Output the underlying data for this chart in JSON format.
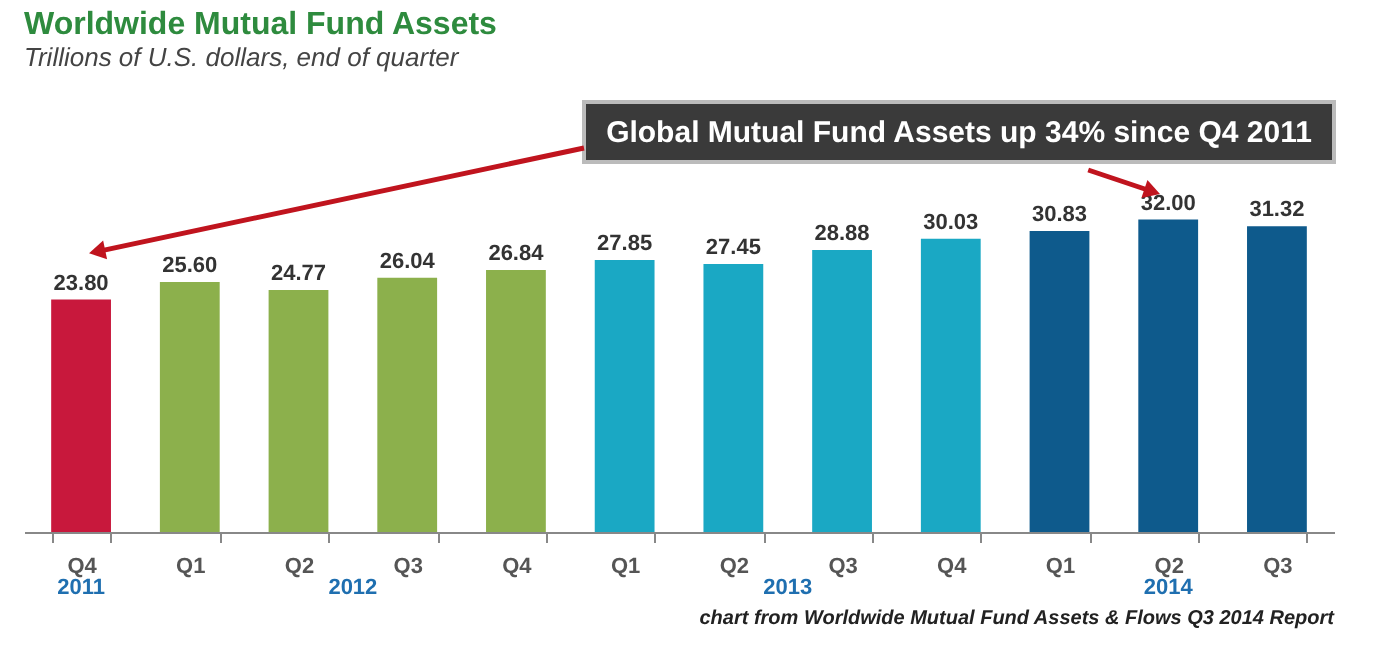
{
  "chart_data": {
    "type": "bar",
    "title": "Worldwide Mutual Fund Assets",
    "subtitle": "Trillions of U.S. dollars, end of quarter",
    "categories": [
      "Q4",
      "Q1",
      "Q2",
      "Q3",
      "Q4",
      "Q1",
      "Q2",
      "Q3",
      "Q4",
      "Q1",
      "Q2",
      "Q3"
    ],
    "values": [
      23.8,
      25.6,
      24.77,
      26.04,
      26.84,
      27.85,
      27.45,
      28.88,
      30.03,
      30.83,
      32.0,
      31.32
    ],
    "value_labels": [
      "23.80",
      "25.60",
      "24.77",
      "26.04",
      "26.84",
      "27.85",
      "27.45",
      "28.88",
      "30.03",
      "30.83",
      "32.00",
      "31.32"
    ],
    "colors": [
      "#c8183c",
      "#8cb04c",
      "#8cb04c",
      "#8cb04c",
      "#8cb04c",
      "#1aa8c4",
      "#1aa8c4",
      "#1aa8c4",
      "#1aa8c4",
      "#0e5a8c",
      "#0e5a8c",
      "#0e5a8c"
    ],
    "tick_labels": "x",
    "annotations": [
      "Global Mutual Fund Assets up 34% since Q4 2011",
      "2011",
      "2012",
      "2013",
      "2014",
      "chart from Worldwide Mutual Fund Assets & Flows Q3 2014 Report"
    ]
  }
}
